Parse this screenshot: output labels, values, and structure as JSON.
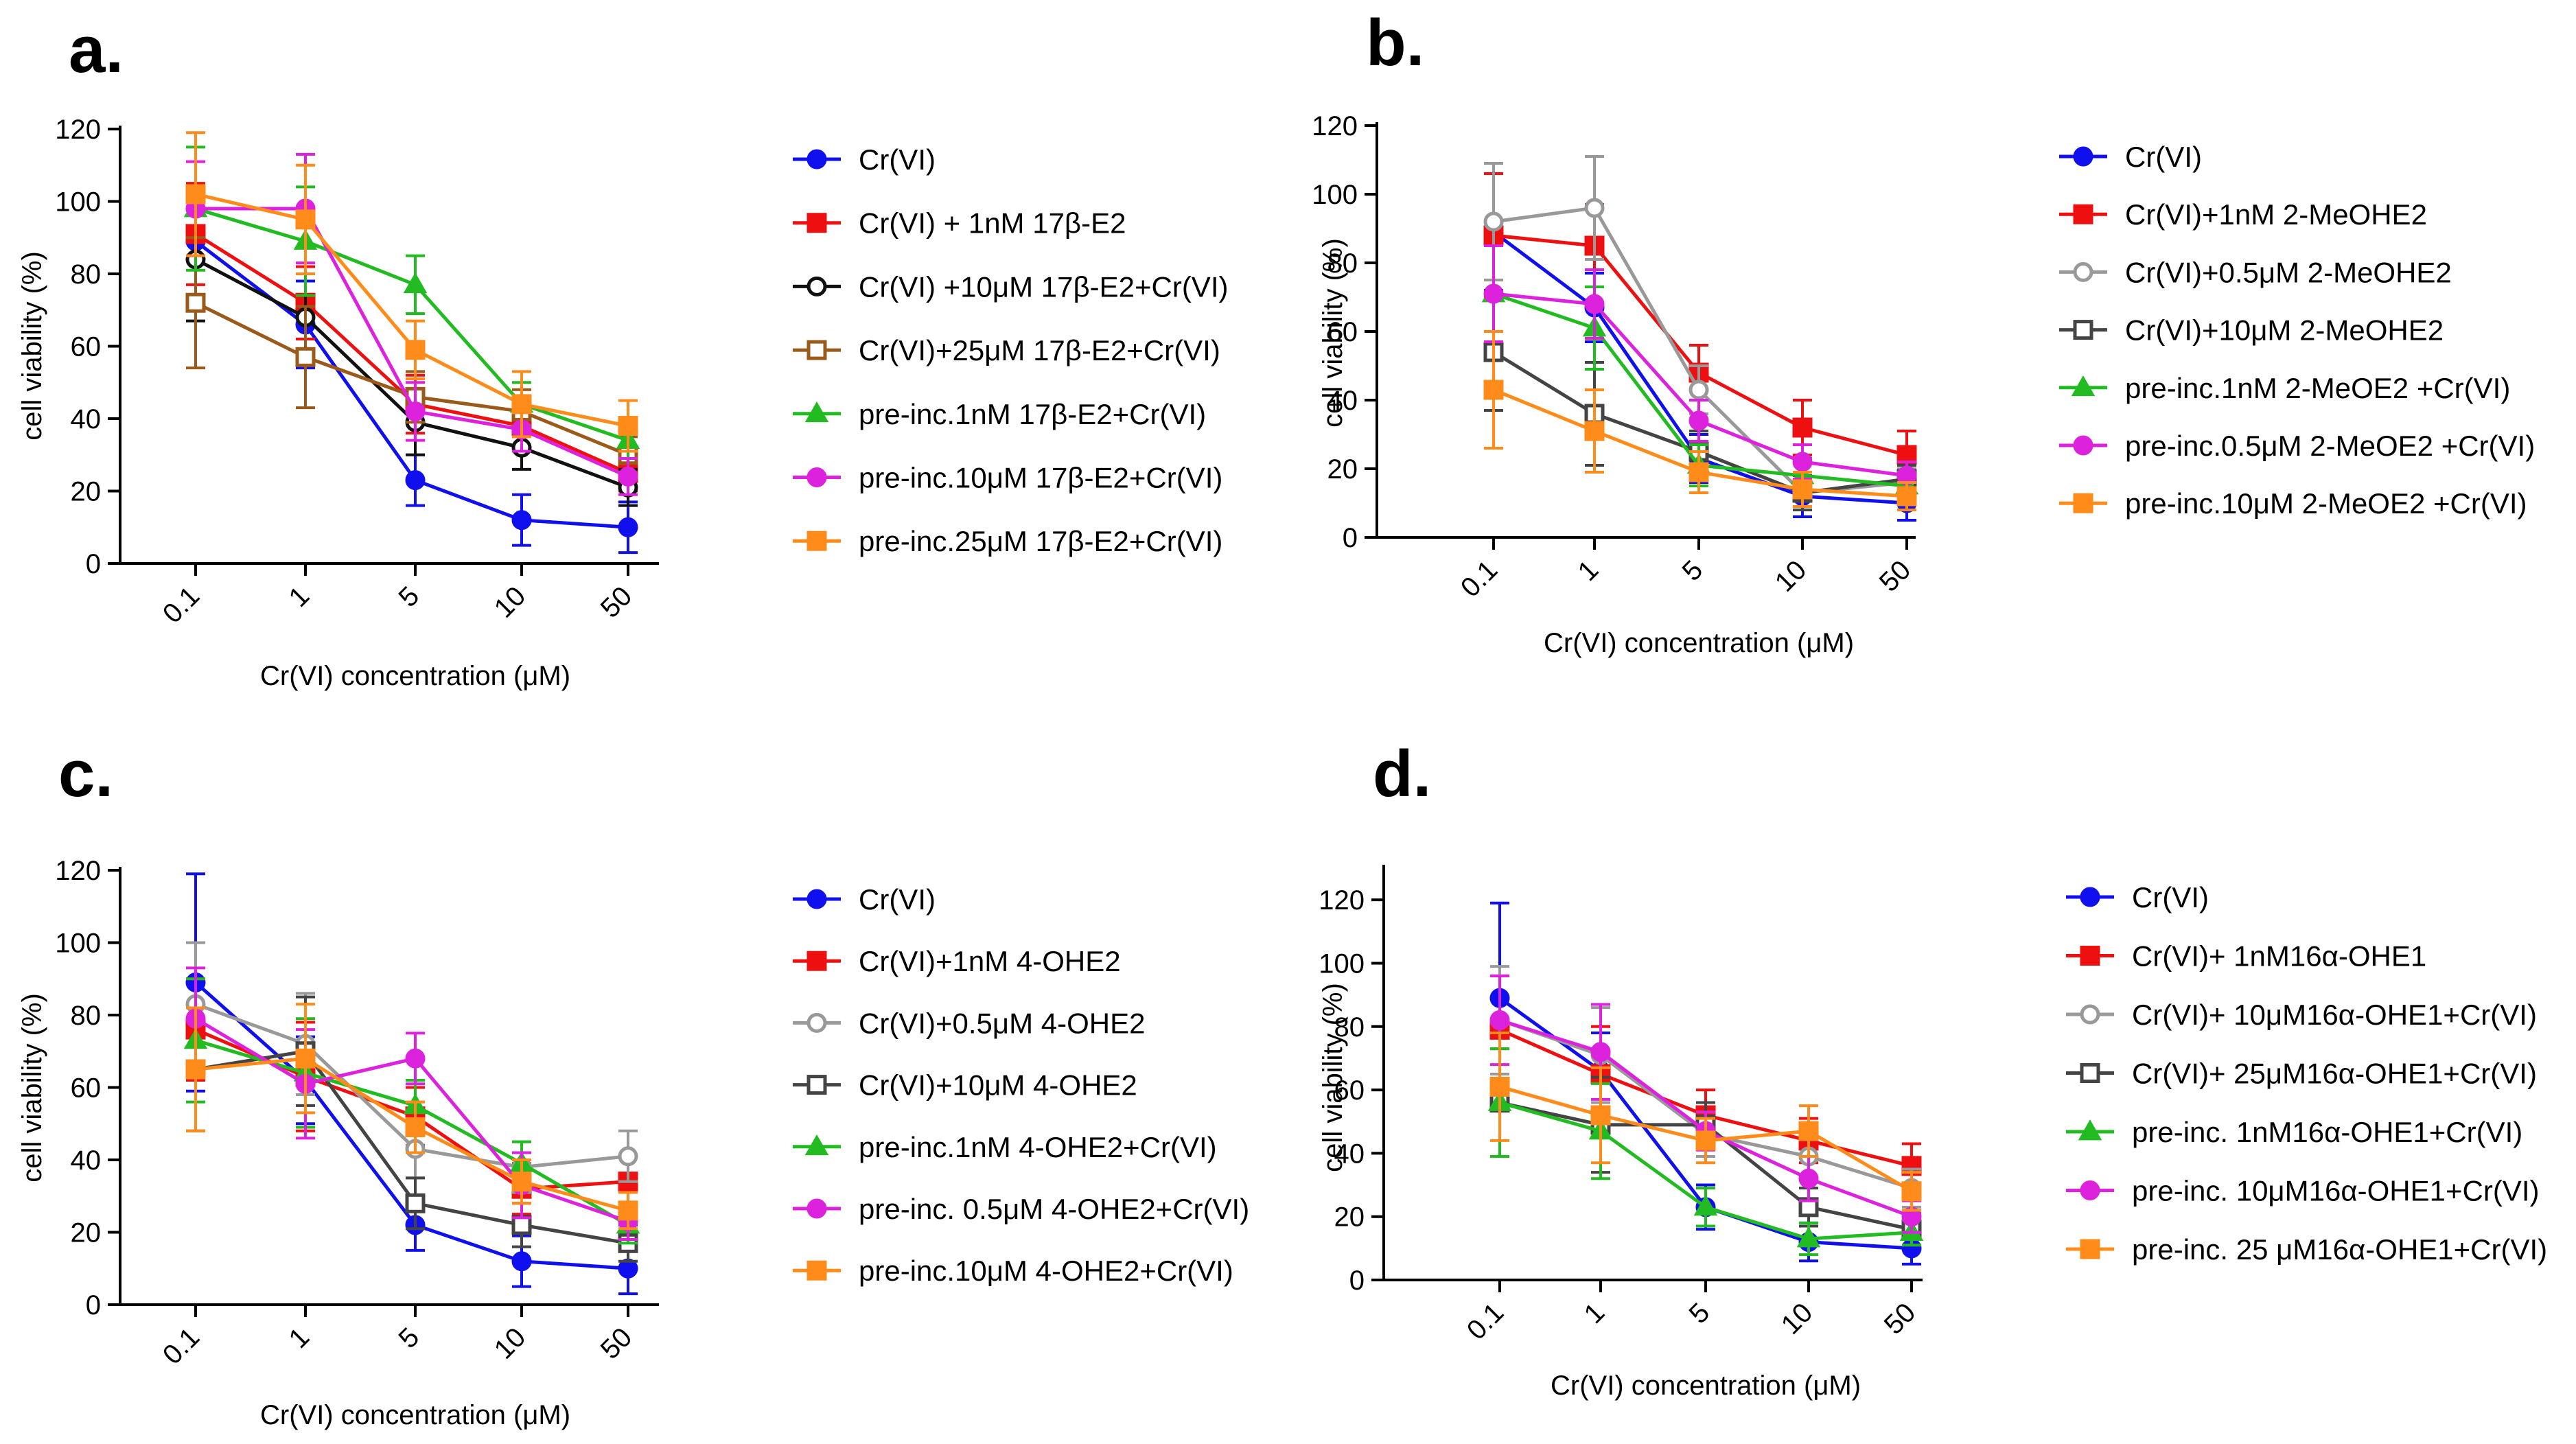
{
  "chart_data": [
    {
      "panel": "a.",
      "type": "line",
      "x": [
        "0.1",
        "1",
        "5",
        "10",
        "50"
      ],
      "xlabel": "Cr(VI) concentration (μM)",
      "ylabel": "cell viability (%)",
      "ylim": [
        0,
        120
      ],
      "yticks": [
        0,
        20,
        40,
        60,
        80,
        100,
        120
      ],
      "series": [
        {
          "name": "Cr(VI)",
          "color": "#1010ee",
          "marker": "circle",
          "fill": true,
          "values": [
            89,
            66,
            23,
            12,
            10
          ],
          "err": [
            15,
            12,
            7,
            7,
            7
          ]
        },
        {
          "name": "Cr(VI) + 1nM 17β-E2",
          "color": "#ee1010",
          "marker": "square",
          "fill": true,
          "values": [
            91,
            72,
            44,
            38,
            25
          ],
          "err": [
            14,
            10,
            8,
            6,
            5
          ]
        },
        {
          "name": "Cr(VI) +10μM 17β-E2+Cr(VI)",
          "color": "#111111",
          "marker": "circle",
          "fill": false,
          "values": [
            84,
            68,
            39,
            32,
            21
          ],
          "err": [
            17,
            12,
            9,
            6,
            5
          ]
        },
        {
          "name": "Cr(VI)+25μM 17β-E2+Cr(VI)",
          "color": "#9a5a1a",
          "marker": "square",
          "fill": false,
          "values": [
            72,
            57,
            46,
            42,
            30
          ],
          "err": [
            18,
            14,
            7,
            6,
            5
          ]
        },
        {
          "name": "pre-inc.1nM 17β-E2+Cr(VI)",
          "color": "#22bb22",
          "marker": "triangle",
          "fill": true,
          "values": [
            98,
            89,
            77,
            44,
            34
          ],
          "err": [
            17,
            15,
            8,
            6,
            5
          ]
        },
        {
          "name": "pre-inc.10μM 17β-E2+Cr(VI)",
          "color": "#dd22dd",
          "marker": "circle",
          "fill": true,
          "values": [
            98,
            98,
            42,
            37,
            24
          ],
          "err": [
            13,
            15,
            8,
            6,
            5
          ]
        },
        {
          "name": "pre-inc.25μM 17β-E2+Cr(VI)",
          "color": "#ff8c1a",
          "marker": "square",
          "fill": true,
          "values": [
            102,
            95,
            59,
            44,
            38
          ],
          "err": [
            17,
            15,
            8,
            9,
            7
          ]
        }
      ]
    },
    {
      "panel": "b.",
      "type": "line",
      "x": [
        "0.1",
        "1",
        "5",
        "10",
        "50"
      ],
      "xlabel": "Cr(VI) concentration (μM)",
      "ylabel": "cell viability (%)",
      "ylim": [
        0,
        120
      ],
      "yticks": [
        0,
        20,
        40,
        60,
        80,
        100,
        120
      ],
      "series": [
        {
          "name": "Cr(VI)",
          "color": "#1010ee",
          "marker": "circle",
          "fill": true,
          "values": [
            89,
            67,
            23,
            12,
            10
          ],
          "err": [
            17,
            10,
            7,
            6,
            5
          ]
        },
        {
          "name": "Cr(VI)+1nM 2-MeOHE2",
          "color": "#ee1010",
          "marker": "square",
          "fill": true,
          "values": [
            88,
            85,
            48,
            32,
            24
          ],
          "err": [
            18,
            12,
            8,
            8,
            7
          ]
        },
        {
          "name": "Cr(VI)+0.5μM 2-MeOHE2",
          "color": "#999999",
          "marker": "circle",
          "fill": false,
          "values": [
            92,
            96,
            43,
            13,
            16
          ],
          "err": [
            17,
            15,
            7,
            5,
            4
          ]
        },
        {
          "name": "Cr(VI)+10μM 2-MeOHE2",
          "color": "#444444",
          "marker": "square",
          "fill": false,
          "values": [
            54,
            36,
            25,
            13,
            17
          ],
          "err": [
            17,
            15,
            6,
            5,
            4
          ]
        },
        {
          "name": "pre-inc.1nM 2-MeOE2 +Cr(VI)",
          "color": "#22bb22",
          "marker": "triangle",
          "fill": true,
          "values": [
            71,
            61,
            21,
            18,
            15
          ],
          "err": [
            14,
            12,
            6,
            5,
            4
          ]
        },
        {
          "name": "pre-inc.0.5μM 2-MeOE2 +Cr(VI)",
          "color": "#dd22dd",
          "marker": "circle",
          "fill": true,
          "values": [
            71,
            68,
            34,
            22,
            18
          ],
          "err": [
            14,
            10,
            6,
            5,
            4
          ]
        },
        {
          "name": "pre-inc.10μM 2-MeOE2 +Cr(VI)",
          "color": "#ff8c1a",
          "marker": "square",
          "fill": true,
          "values": [
            43,
            31,
            19,
            14,
            12
          ],
          "err": [
            17,
            12,
            6,
            5,
            4
          ]
        }
      ]
    },
    {
      "panel": "c.",
      "type": "line",
      "x": [
        "0.1",
        "1",
        "5",
        "10",
        "50"
      ],
      "xlabel": "Cr(VI) concentration (μM)",
      "ylabel": "cell viability (%)",
      "ylim": [
        0,
        120
      ],
      "yticks": [
        0,
        20,
        40,
        60,
        80,
        100,
        120
      ],
      "series": [
        {
          "name": "Cr(VI)",
          "color": "#1010ee",
          "marker": "circle",
          "fill": true,
          "values": [
            89,
            62,
            22,
            12,
            10
          ],
          "err": [
            30,
            12,
            7,
            7,
            7
          ]
        },
        {
          "name": "Cr(VI)+1nM 4-OHE2",
          "color": "#ee1010",
          "marker": "square",
          "fill": true,
          "values": [
            76,
            63,
            52,
            32,
            34
          ],
          "err": [
            14,
            15,
            8,
            7,
            7
          ]
        },
        {
          "name": "Cr(VI)+0.5μM 4-OHE2",
          "color": "#999999",
          "marker": "circle",
          "fill": false,
          "values": [
            83,
            72,
            43,
            38,
            41
          ],
          "err": [
            17,
            14,
            8,
            7,
            7
          ]
        },
        {
          "name": "Cr(VI)+10μM 4-OHE2",
          "color": "#444444",
          "marker": "square",
          "fill": false,
          "values": [
            65,
            70,
            28,
            22,
            17
          ],
          "err": [
            17,
            15,
            7,
            6,
            5
          ]
        },
        {
          "name": "pre-inc.1nM 4-OHE2+Cr(VI)",
          "color": "#22bb22",
          "marker": "triangle",
          "fill": true,
          "values": [
            73,
            64,
            55,
            39,
            22
          ],
          "err": [
            17,
            15,
            7,
            6,
            5
          ]
        },
        {
          "name": "pre-inc. 0.5μM 4-OHE2+Cr(VI)",
          "color": "#dd22dd",
          "marker": "circle",
          "fill": true,
          "values": [
            79,
            61,
            68,
            33,
            23
          ],
          "err": [
            14,
            15,
            7,
            9,
            5
          ]
        },
        {
          "name": "pre-inc.10μM 4-OHE2+Cr(VI)",
          "color": "#ff8c1a",
          "marker": "square",
          "fill": true,
          "values": [
            65,
            68,
            49,
            34,
            26
          ],
          "err": [
            17,
            15,
            7,
            6,
            5
          ]
        }
      ]
    },
    {
      "panel": "d.",
      "type": "line",
      "x": [
        "0.1",
        "1",
        "5",
        "10",
        "50"
      ],
      "xlabel": "Cr(VI) concentration (μM)",
      "ylabel": "cell viability (%)",
      "ylim": [
        0,
        130
      ],
      "yticks": [
        0,
        20,
        40,
        60,
        80,
        100,
        120
      ],
      "series": [
        {
          "name": "Cr(VI)",
          "color": "#1010ee",
          "marker": "circle",
          "fill": true,
          "values": [
            89,
            66,
            23,
            12,
            10
          ],
          "err": [
            30,
            12,
            7,
            6,
            5
          ]
        },
        {
          "name": "Cr(VI)+ 1nM16α-OHE1",
          "color": "#ee1010",
          "marker": "square",
          "fill": true,
          "values": [
            79,
            65,
            52,
            44,
            36
          ],
          "err": [
            17,
            15,
            8,
            7,
            7
          ]
        },
        {
          "name": "Cr(VI)+ 10μM16α-OHE1+Cr(VI)",
          "color": "#999999",
          "marker": "circle",
          "fill": false,
          "values": [
            82,
            71,
            46,
            39,
            29
          ],
          "err": [
            17,
            15,
            7,
            7,
            6
          ]
        },
        {
          "name": "Cr(VI)+ 25μM16α-OHE1+Cr(VI)",
          "color": "#444444",
          "marker": "square",
          "fill": false,
          "values": [
            56,
            49,
            49,
            23,
            16
          ],
          "err": [
            17,
            15,
            7,
            6,
            5
          ]
        },
        {
          "name": "pre-inc. 1nM16α-OHE1+Cr(VI)",
          "color": "#22bb22",
          "marker": "triangle",
          "fill": true,
          "values": [
            56,
            47,
            23,
            13,
            15
          ],
          "err": [
            17,
            15,
            6,
            5,
            4
          ]
        },
        {
          "name": "pre-inc. 10μM16α-OHE1+Cr(VI)",
          "color": "#dd22dd",
          "marker": "circle",
          "fill": true,
          "values": [
            82,
            72,
            47,
            32,
            20
          ],
          "err": [
            14,
            15,
            6,
            7,
            5
          ]
        },
        {
          "name": "pre-inc. 25 μM16α-OHE1+Cr(VI)",
          "color": "#ff8c1a",
          "marker": "square",
          "fill": true,
          "values": [
            61,
            52,
            44,
            47,
            28
          ],
          "err": [
            17,
            15,
            7,
            8,
            6
          ]
        }
      ]
    }
  ]
}
